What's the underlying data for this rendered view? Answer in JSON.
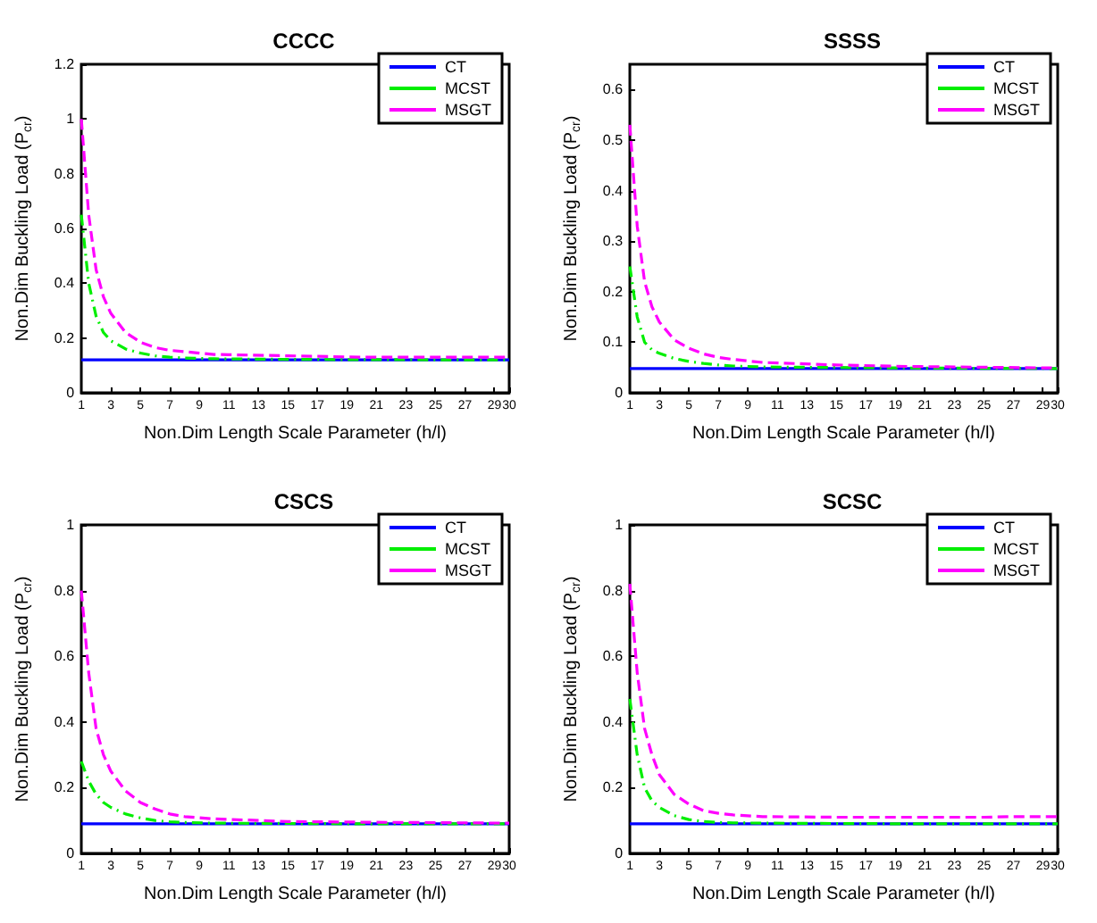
{
  "chart_data": [
    {
      "type": "line",
      "title": "CCCC",
      "xlabel": "Non.Dim Length Scale Parameter (h/l)",
      "ylabel": "Non.Dim Buckling Load (P$_{cr}$)",
      "xlim": [
        1,
        30
      ],
      "xticks": [
        1,
        3,
        5,
        7,
        9,
        11,
        13,
        15,
        17,
        19,
        21,
        23,
        25,
        27,
        29,
        30
      ],
      "ylim": [
        0,
        1.2
      ],
      "yticks": [
        0,
        0.2,
        0.4,
        0.6,
        0.8,
        1,
        1.2
      ],
      "legend": "top right",
      "grid": false,
      "series": [
        {
          "name": "CT",
          "color": "#0000ff",
          "line_style": "solid",
          "x": [
            1,
            30
          ],
          "values": [
            0.12,
            0.12
          ]
        },
        {
          "name": "MCST",
          "color": "#00ee00",
          "line_style": "dashdot",
          "x": [
            1,
            1.5,
            2,
            2.5,
            3,
            4,
            5,
            6,
            7,
            8,
            10,
            15,
            20,
            30
          ],
          "values": [
            0.65,
            0.4,
            0.28,
            0.22,
            0.19,
            0.16,
            0.145,
            0.135,
            0.13,
            0.127,
            0.124,
            0.122,
            0.121,
            0.12
          ]
        },
        {
          "name": "MSGT",
          "color": "#ff00ff",
          "line_style": "dashed",
          "x": [
            1,
            1.5,
            2,
            2.5,
            3,
            4,
            5,
            6,
            7,
            8,
            10,
            15,
            20,
            25,
            30
          ],
          "values": [
            1.0,
            0.65,
            0.45,
            0.35,
            0.29,
            0.22,
            0.185,
            0.165,
            0.155,
            0.15,
            0.14,
            0.135,
            0.13,
            0.13,
            0.13
          ]
        }
      ]
    },
    {
      "type": "line",
      "title": "SSSS",
      "xlabel": "Non.Dim Length Scale Parameter (h/l)",
      "ylabel": "Non.Dim Buckling Load (P$_{cr}$)",
      "xlim": [
        1,
        30
      ],
      "xticks": [
        1,
        3,
        5,
        7,
        9,
        11,
        13,
        15,
        17,
        19,
        21,
        23,
        25,
        27,
        29,
        30
      ],
      "ylim": [
        0,
        0.65
      ],
      "yticks": [
        0,
        0.1,
        0.2,
        0.3,
        0.4,
        0.5,
        0.6
      ],
      "legend": "top right",
      "grid": false,
      "series": [
        {
          "name": "CT",
          "color": "#0000ff",
          "line_style": "solid",
          "x": [
            1,
            30
          ],
          "values": [
            0.048,
            0.048
          ]
        },
        {
          "name": "MCST",
          "color": "#00ee00",
          "line_style": "dashdot",
          "x": [
            1,
            1.5,
            2,
            2.5,
            3,
            4,
            5,
            6,
            7,
            8,
            10,
            15,
            20,
            30
          ],
          "values": [
            0.25,
            0.15,
            0.1,
            0.085,
            0.078,
            0.068,
            0.062,
            0.058,
            0.055,
            0.053,
            0.051,
            0.05,
            0.049,
            0.048
          ]
        },
        {
          "name": "MSGT",
          "color": "#ff00ff",
          "line_style": "dashed",
          "x": [
            1,
            1.5,
            2,
            2.5,
            3,
            4,
            5,
            6,
            7,
            8,
            10,
            15,
            20,
            30
          ],
          "values": [
            0.53,
            0.33,
            0.22,
            0.17,
            0.14,
            0.105,
            0.088,
            0.077,
            0.07,
            0.066,
            0.06,
            0.055,
            0.052,
            0.049
          ]
        }
      ]
    },
    {
      "type": "line",
      "title": "CSCS",
      "xlabel": "Non.Dim Length Scale Parameter (h/l)",
      "ylabel": "Non.Dim Buckling Load (P$_{cr}$)",
      "xlim": [
        1,
        30
      ],
      "xticks": [
        1,
        3,
        5,
        7,
        9,
        11,
        13,
        15,
        17,
        19,
        21,
        23,
        25,
        27,
        29,
        30
      ],
      "ylim": [
        0,
        1
      ],
      "yticks": [
        0,
        0.2,
        0.4,
        0.6,
        0.8,
        1
      ],
      "legend": "top right",
      "grid": false,
      "series": [
        {
          "name": "CT",
          "color": "#0000ff",
          "line_style": "solid",
          "x": [
            1,
            30
          ],
          "values": [
            0.09,
            0.09
          ]
        },
        {
          "name": "MCST",
          "color": "#00ee00",
          "line_style": "dashdot",
          "x": [
            1,
            1.5,
            2,
            2.5,
            3,
            4,
            5,
            6,
            7,
            8,
            10,
            15,
            20,
            30
          ],
          "values": [
            0.28,
            0.22,
            0.18,
            0.155,
            0.14,
            0.12,
            0.108,
            0.1,
            0.096,
            0.094,
            0.092,
            0.091,
            0.09,
            0.09
          ]
        },
        {
          "name": "MSGT",
          "color": "#ff00ff",
          "line_style": "dashed",
          "x": [
            1,
            1.5,
            2,
            2.5,
            3,
            4,
            5,
            6,
            7,
            8,
            10,
            15,
            20,
            30
          ],
          "values": [
            0.8,
            0.55,
            0.38,
            0.3,
            0.25,
            0.19,
            0.155,
            0.135,
            0.12,
            0.112,
            0.105,
            0.097,
            0.095,
            0.092
          ]
        }
      ]
    },
    {
      "type": "line",
      "title": "SCSC",
      "xlabel": "Non.Dim Length Scale Parameter (h/l)",
      "ylabel": "Non.Dim Buckling Load (P$_{cr}$)",
      "xlim": [
        1,
        30
      ],
      "xticks": [
        1,
        3,
        5,
        7,
        9,
        11,
        13,
        15,
        17,
        19,
        21,
        23,
        25,
        27,
        29,
        30
      ],
      "ylim": [
        0,
        1
      ],
      "yticks": [
        0,
        0.2,
        0.4,
        0.6,
        0.8,
        1
      ],
      "legend": "top right",
      "grid": false,
      "series": [
        {
          "name": "CT",
          "color": "#0000ff",
          "line_style": "solid",
          "x": [
            1,
            30
          ],
          "values": [
            0.09,
            0.09
          ]
        },
        {
          "name": "MCST",
          "color": "#00ee00",
          "line_style": "dashdot",
          "x": [
            1,
            1.5,
            2,
            2.5,
            3,
            4,
            5,
            6,
            7,
            8,
            10,
            15,
            20,
            30
          ],
          "values": [
            0.47,
            0.3,
            0.2,
            0.16,
            0.14,
            0.115,
            0.103,
            0.097,
            0.094,
            0.093,
            0.092,
            0.091,
            0.09,
            0.09
          ]
        },
        {
          "name": "MSGT",
          "color": "#ff00ff",
          "line_style": "dashed",
          "x": [
            1,
            1.5,
            2,
            2.5,
            3,
            4,
            5,
            6,
            7,
            8,
            10,
            15,
            20,
            25,
            27,
            30
          ],
          "values": [
            0.82,
            0.55,
            0.38,
            0.3,
            0.24,
            0.18,
            0.15,
            0.13,
            0.122,
            0.117,
            0.112,
            0.11,
            0.11,
            0.11,
            0.112,
            0.112
          ]
        }
      ]
    }
  ]
}
